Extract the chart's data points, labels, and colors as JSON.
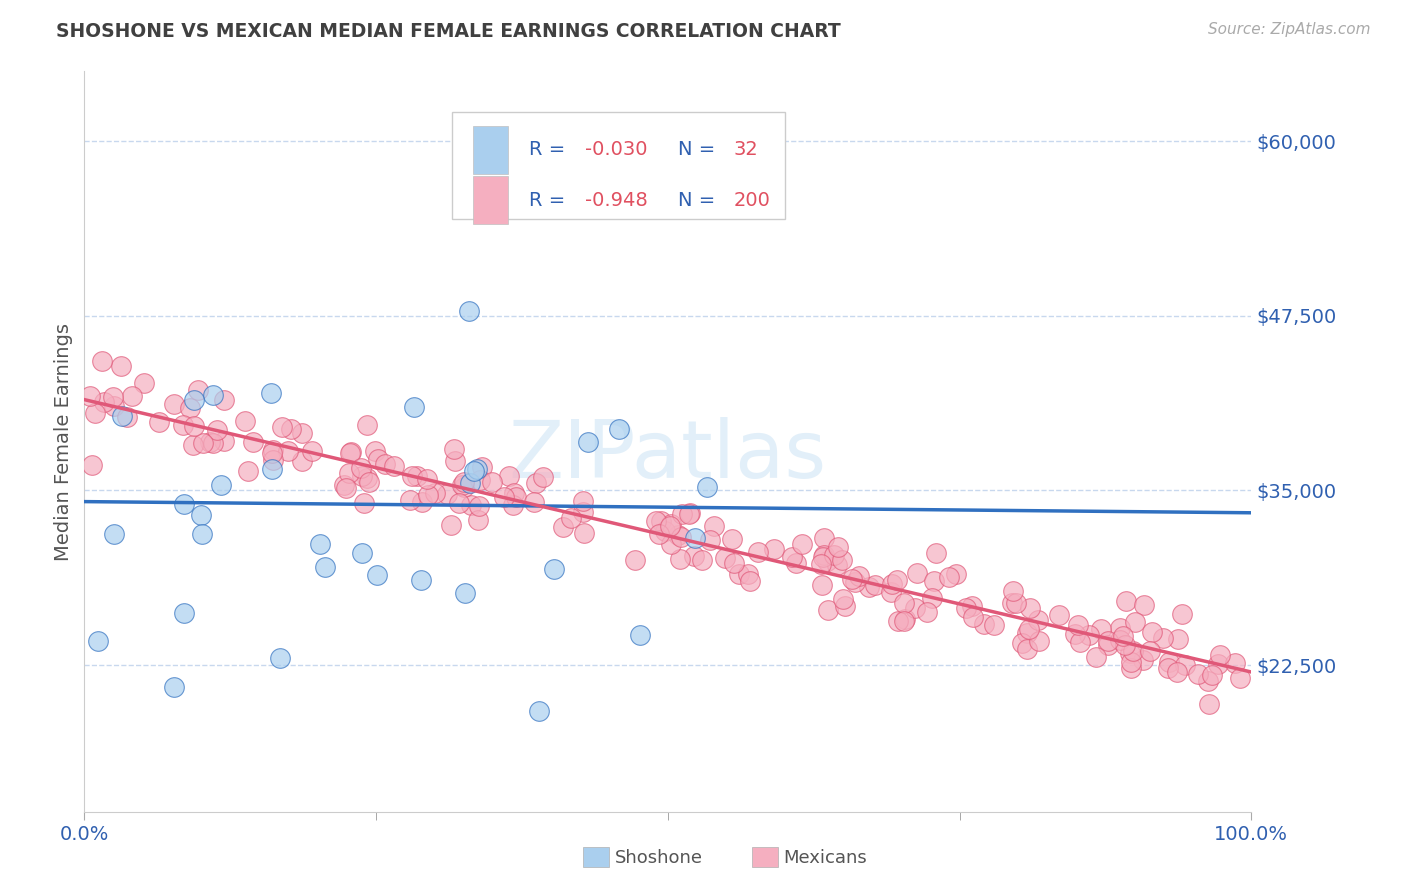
{
  "title": "SHOSHONE VS MEXICAN MEDIAN FEMALE EARNINGS CORRELATION CHART",
  "source": "Source: ZipAtlas.com",
  "ylabel": "Median Female Earnings",
  "xlim": [
    0,
    1
  ],
  "ylim": [
    12000,
    65000
  ],
  "yticks": [
    22500,
    35000,
    47500,
    60000
  ],
  "ytick_labels": [
    "$22,500",
    "$35,000",
    "$47,500",
    "$60,000"
  ],
  "xtick_labels": [
    "0.0%",
    "100.0%"
  ],
  "background_color": "#ffffff",
  "shoshone_color": "#aacfee",
  "mexican_color": "#f5afc0",
  "shoshone_line_color": "#3070c0",
  "mexican_line_color": "#e05878",
  "shoshone_R": -0.03,
  "shoshone_N": 32,
  "mexican_R": -0.948,
  "mexican_N": 200,
  "shoshone_intercept": 34200,
  "shoshone_slope": -800,
  "mexican_intercept": 41500,
  "mexican_slope": -19500,
  "grid_color": "#c8d8ee",
  "title_color": "#404040",
  "tick_label_color": "#3060b0",
  "legend_text_color": "#3060b0",
  "legend_value_color": "#e05060"
}
